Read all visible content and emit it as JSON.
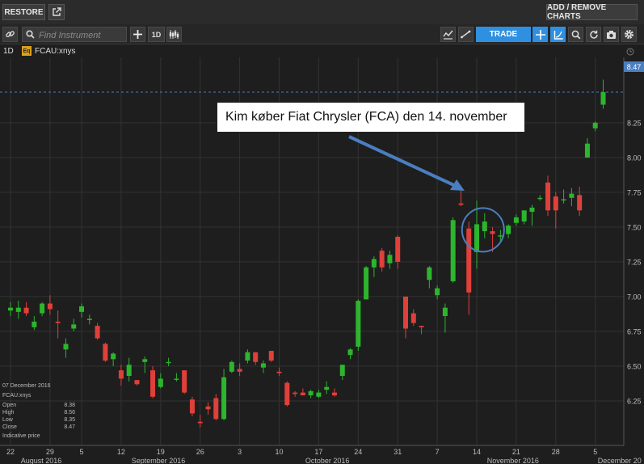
{
  "toolbar": {
    "restore_label": "RESTORE",
    "add_remove_label": "ADD / REMOVE CHARTS",
    "search_placeholder": "Find Instrument",
    "interval_label": "1D",
    "trade_label": "TRADE"
  },
  "legend": {
    "interval": "1D",
    "badge": "Eq",
    "instrument": "FCAU:xnys"
  },
  "info_panel": {
    "date": "07 December 2016",
    "instrument": "FCAU:xnys",
    "open_label": "Open",
    "open": "8.38",
    "high_label": "High",
    "high": "8.56",
    "low_label": "Low",
    "low": "8.35",
    "close_label": "Close",
    "close": "8.47",
    "note": "Indicative price"
  },
  "annotation": {
    "text": "Kim køber Fiat Chrysler (FCA) den 14. november"
  },
  "price_tag": "8.47",
  "colors": {
    "up": "#2db52d",
    "down": "#e0403a",
    "accent": "#2f8fe0",
    "arrow": "#4a7ec0",
    "grid": "#333333"
  },
  "chart_data": {
    "type": "candlestick",
    "instrument": "FCAU:xnys",
    "interval": "1D",
    "yticks": [
      6.25,
      6.5,
      6.75,
      7.0,
      7.25,
      7.5,
      7.75,
      8.0,
      8.25
    ],
    "ytick_labels": [
      "6.25",
      "6.50",
      "6.75",
      "7.00",
      "7.25",
      "7.50",
      "7.75",
      "8.00",
      "8.25"
    ],
    "ylim": [
      5.93,
      8.72
    ],
    "last_price": 8.47,
    "xticks": [
      {
        "i": 0,
        "label": "22"
      },
      {
        "i": 5,
        "label": "29"
      },
      {
        "i": 9,
        "label": "5"
      },
      {
        "i": 14,
        "label": "12"
      },
      {
        "i": 19,
        "label": "19"
      },
      {
        "i": 24,
        "label": "26"
      },
      {
        "i": 29,
        "label": "3"
      },
      {
        "i": 34,
        "label": "10"
      },
      {
        "i": 39,
        "label": "17"
      },
      {
        "i": 44,
        "label": "24"
      },
      {
        "i": 49,
        "label": "31"
      },
      {
        "i": 54,
        "label": "7"
      },
      {
        "i": 59,
        "label": "14"
      },
      {
        "i": 64,
        "label": "21"
      },
      {
        "i": 69,
        "label": "28"
      },
      {
        "i": 74,
        "label": "5"
      }
    ],
    "month_labels": [
      {
        "i": 1,
        "label": "August 2016"
      },
      {
        "i": 15,
        "label": "September 2016"
      },
      {
        "i": 37,
        "label": "October 2016"
      },
      {
        "i": 60,
        "label": "November 2016"
      },
      {
        "i": 74,
        "label": "December 20"
      }
    ],
    "candles": [
      {
        "o": 6.9,
        "h": 6.96,
        "l": 6.86,
        "c": 6.92
      },
      {
        "o": 6.89,
        "h": 6.97,
        "l": 6.84,
        "c": 6.92
      },
      {
        "o": 6.92,
        "h": 6.96,
        "l": 6.86,
        "c": 6.88
      },
      {
        "o": 6.78,
        "h": 6.86,
        "l": 6.76,
        "c": 6.82
      },
      {
        "o": 6.88,
        "h": 6.96,
        "l": 6.86,
        "c": 6.95
      },
      {
        "o": 6.95,
        "h": 7.01,
        "l": 6.87,
        "c": 6.91
      },
      {
        "o": 6.82,
        "h": 6.9,
        "l": 6.7,
        "c": 6.81
      },
      {
        "o": 6.62,
        "h": 6.7,
        "l": 6.56,
        "c": 6.66
      },
      {
        "o": 6.77,
        "h": 6.84,
        "l": 6.75,
        "c": 6.8
      },
      {
        "o": 6.89,
        "h": 6.95,
        "l": 6.85,
        "c": 6.93
      },
      {
        "o": 6.84,
        "h": 6.87,
        "l": 6.8,
        "c": 6.84
      },
      {
        "o": 6.79,
        "h": 6.81,
        "l": 6.69,
        "c": 6.7
      },
      {
        "o": 6.66,
        "h": 6.67,
        "l": 6.53,
        "c": 6.54
      },
      {
        "o": 6.55,
        "h": 6.6,
        "l": 6.5,
        "c": 6.59
      },
      {
        "o": 6.47,
        "h": 6.51,
        "l": 6.36,
        "c": 6.41
      },
      {
        "o": 6.43,
        "h": 6.56,
        "l": 6.39,
        "c": 6.51
      },
      {
        "o": 6.4,
        "h": 6.4,
        "l": 6.36,
        "c": 6.37
      },
      {
        "o": 6.53,
        "h": 6.57,
        "l": 6.45,
        "c": 6.55
      },
      {
        "o": 6.47,
        "h": 6.5,
        "l": 6.27,
        "c": 6.28
      },
      {
        "o": 6.35,
        "h": 6.45,
        "l": 6.34,
        "c": 6.41
      },
      {
        "o": 6.53,
        "h": 6.56,
        "l": 6.5,
        "c": 6.53
      },
      {
        "o": 6.41,
        "h": 6.45,
        "l": 6.39,
        "c": 6.41
      },
      {
        "o": 6.47,
        "h": 6.47,
        "l": 6.3,
        "c": 6.31
      },
      {
        "o": 6.26,
        "h": 6.28,
        "l": 6.14,
        "c": 6.16
      },
      {
        "o": 6.1,
        "h": 6.15,
        "l": 6.06,
        "c": 6.09
      },
      {
        "o": 6.21,
        "h": 6.24,
        "l": 6.15,
        "c": 6.19
      },
      {
        "o": 6.27,
        "h": 6.3,
        "l": 6.11,
        "c": 6.12
      },
      {
        "o": 6.12,
        "h": 6.48,
        "l": 6.11,
        "c": 6.42
      },
      {
        "o": 6.46,
        "h": 6.54,
        "l": 6.45,
        "c": 6.53
      },
      {
        "o": 6.48,
        "h": 6.52,
        "l": 6.43,
        "c": 6.46
      },
      {
        "o": 6.54,
        "h": 6.62,
        "l": 6.52,
        "c": 6.6
      },
      {
        "o": 6.6,
        "h": 6.6,
        "l": 6.51,
        "c": 6.53
      },
      {
        "o": 6.49,
        "h": 6.54,
        "l": 6.45,
        "c": 6.52
      },
      {
        "o": 6.61,
        "h": 6.61,
        "l": 6.53,
        "c": 6.54
      },
      {
        "o": 6.46,
        "h": 6.49,
        "l": 6.43,
        "c": 6.45
      },
      {
        "o": 6.38,
        "h": 6.39,
        "l": 6.21,
        "c": 6.22
      },
      {
        "o": 6.31,
        "h": 6.32,
        "l": 6.28,
        "c": 6.3
      },
      {
        "o": 6.31,
        "h": 6.34,
        "l": 6.29,
        "c": 6.29
      },
      {
        "o": 6.29,
        "h": 6.33,
        "l": 6.27,
        "c": 6.32
      },
      {
        "o": 6.28,
        "h": 6.33,
        "l": 6.27,
        "c": 6.31
      },
      {
        "o": 6.33,
        "h": 6.39,
        "l": 6.3,
        "c": 6.35
      },
      {
        "o": 6.31,
        "h": 6.34,
        "l": 6.28,
        "c": 6.29
      },
      {
        "o": 6.43,
        "h": 6.5,
        "l": 6.4,
        "c": 6.51
      },
      {
        "o": 6.58,
        "h": 6.63,
        "l": 6.55,
        "c": 6.62
      },
      {
        "o": 6.64,
        "h": 6.98,
        "l": 6.61,
        "c": 6.97
      },
      {
        "o": 6.98,
        "h": 7.22,
        "l": 6.98,
        "c": 7.21
      },
      {
        "o": 7.21,
        "h": 7.29,
        "l": 7.14,
        "c": 7.27
      },
      {
        "o": 7.33,
        "h": 7.35,
        "l": 7.18,
        "c": 7.21
      },
      {
        "o": 7.24,
        "h": 7.33,
        "l": 7.2,
        "c": 7.3
      },
      {
        "o": 7.43,
        "h": 7.44,
        "l": 7.2,
        "c": 7.25
      },
      {
        "o": 7.0,
        "h": 7.0,
        "l": 6.7,
        "c": 6.77
      },
      {
        "o": 6.88,
        "h": 6.91,
        "l": 6.79,
        "c": 6.81
      },
      {
        "o": 6.79,
        "h": 6.79,
        "l": 6.73,
        "c": 6.78
      },
      {
        "o": 7.12,
        "h": 7.22,
        "l": 7.06,
        "c": 7.21
      },
      {
        "o": 7.01,
        "h": 7.08,
        "l": 6.98,
        "c": 7.06
      },
      {
        "o": 6.86,
        "h": 6.95,
        "l": 6.74,
        "c": 6.92
      },
      {
        "o": 7.11,
        "h": 7.57,
        "l": 7.1,
        "c": 7.55
      },
      {
        "o": 7.67,
        "h": 7.78,
        "l": 7.65,
        "c": 7.66
      },
      {
        "o": 7.49,
        "h": 7.54,
        "l": 6.87,
        "c": 7.03
      },
      {
        "o": 7.32,
        "h": 7.69,
        "l": 7.2,
        "c": 7.52
      },
      {
        "o": 7.47,
        "h": 7.6,
        "l": 7.42,
        "c": 7.54
      },
      {
        "o": 7.47,
        "h": 7.5,
        "l": 7.32,
        "c": 7.45
      },
      {
        "o": 7.44,
        "h": 7.48,
        "l": 7.4,
        "c": 7.44
      },
      {
        "o": 7.45,
        "h": 7.52,
        "l": 7.42,
        "c": 7.51
      },
      {
        "o": 7.53,
        "h": 7.59,
        "l": 7.51,
        "c": 7.57
      },
      {
        "o": 7.54,
        "h": 7.61,
        "l": 7.52,
        "c": 7.62
      },
      {
        "o": 7.61,
        "h": 7.66,
        "l": 7.51,
        "c": 7.64
      },
      {
        "o": 7.71,
        "h": 7.73,
        "l": 7.69,
        "c": 7.71
      },
      {
        "o": 7.82,
        "h": 7.87,
        "l": 7.58,
        "c": 7.62
      },
      {
        "o": 7.72,
        "h": 7.75,
        "l": 7.49,
        "c": 7.62
      },
      {
        "o": 7.7,
        "h": 7.77,
        "l": 7.67,
        "c": 7.7
      },
      {
        "o": 7.71,
        "h": 7.78,
        "l": 7.65,
        "c": 7.74
      },
      {
        "o": 7.73,
        "h": 7.79,
        "l": 7.58,
        "c": 7.62
      },
      {
        "o": 8.0,
        "h": 8.14,
        "l": 8.0,
        "c": 8.1
      },
      {
        "o": 8.21,
        "h": 8.26,
        "l": 8.19,
        "c": 8.25
      },
      {
        "o": 8.38,
        "h": 8.56,
        "l": 8.35,
        "c": 8.47
      }
    ]
  }
}
